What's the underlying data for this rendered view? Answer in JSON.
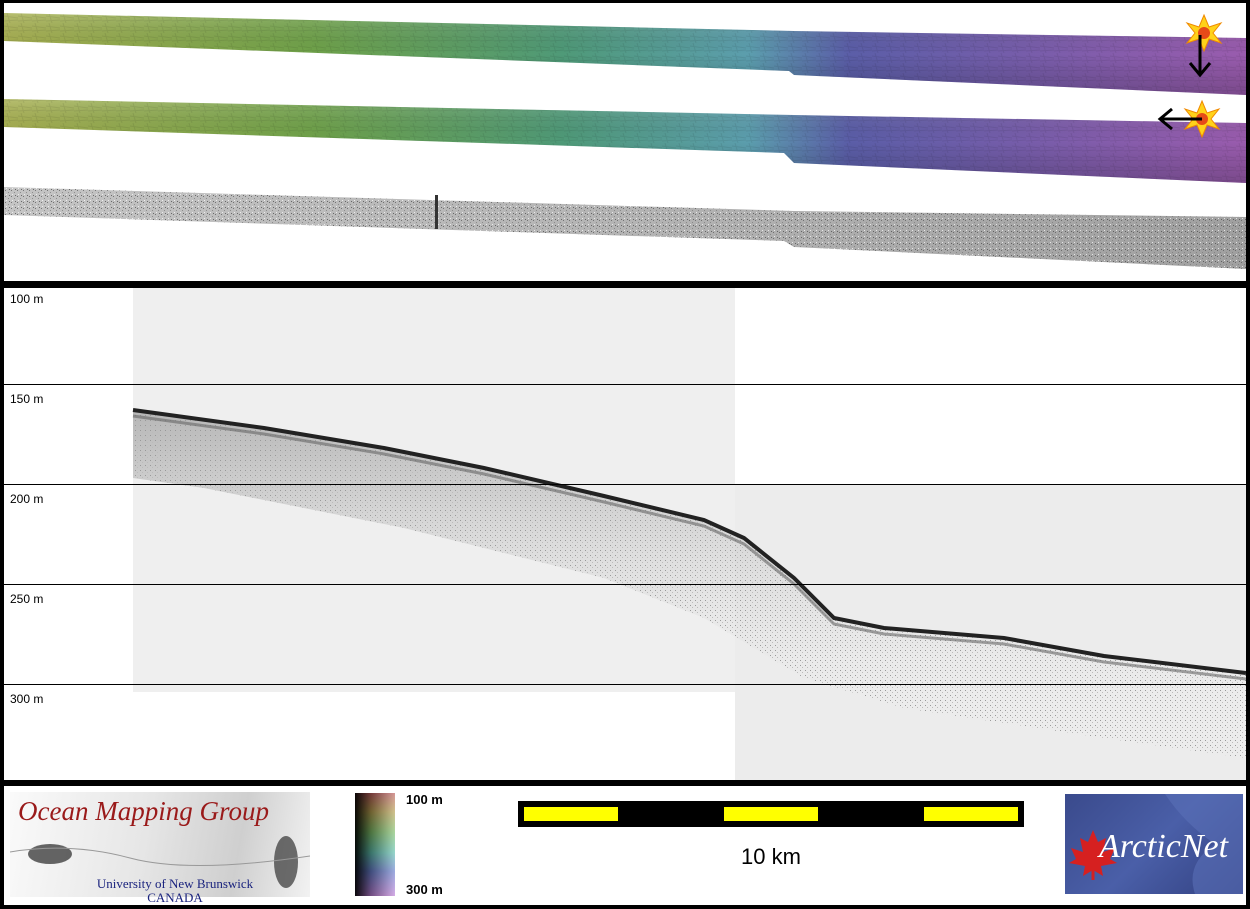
{
  "profile": {
    "depth_labels": [
      "100 m",
      "150 m",
      "200 m",
      "250 m",
      "300 m"
    ]
  },
  "footer": {
    "logo_left": {
      "title": "Ocean Mapping Group",
      "subtitle_line1": "University of New Brunswick",
      "subtitle_line2": "CANADA"
    },
    "colorbar": {
      "top_label": "100 m",
      "bottom_label": "300 m"
    },
    "scale": {
      "label": "10 km"
    },
    "logo_right": {
      "text": "ArcticNet"
    }
  },
  "colors": {
    "panel_background": "#ffffff",
    "frame": "#000000",
    "scale_yellow": "#ffff00",
    "omg_red": "#9a1a1a",
    "arctic_blue": "#3a4a8c"
  },
  "icons": [
    "sun-icon",
    "arrow-down-icon",
    "arrow-left-icon",
    "maple-leaf-icon"
  ]
}
